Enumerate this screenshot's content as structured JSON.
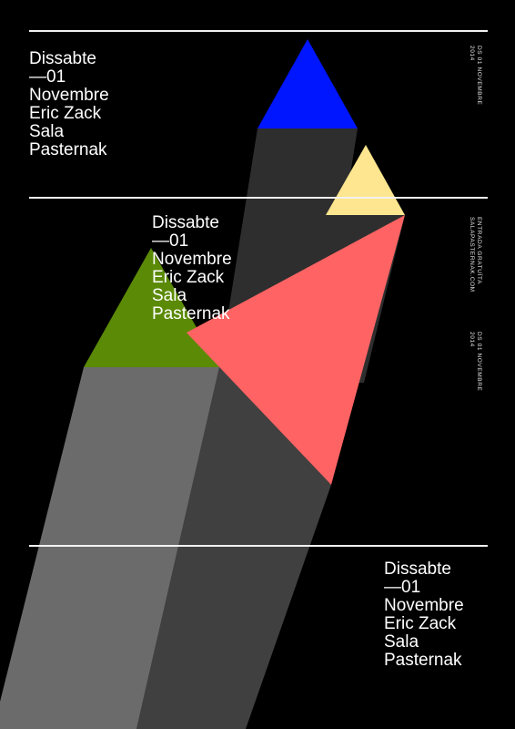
{
  "colors": {
    "background": "#000000",
    "blue_triangle": "#0016ff",
    "yellow_triangle": "#fde68f",
    "green_triangle": "#5b8a06",
    "red_triangle": "#ff6363",
    "shadow_dark": "#2e2e2e",
    "shadow_mid": "#404040",
    "shadow_light": "#6b6b6b",
    "rule_line": "#f2f2f2",
    "text": "#ffffff"
  },
  "event_block_top": {
    "line1": "Dissabte",
    "line2": "—01",
    "line3": "Novembre",
    "line4": "Eric Zack",
    "line5": "Sala",
    "line6": "Pasternak"
  },
  "event_block_middle": {
    "line1": "Dissabte",
    "line2": "—01",
    "line3": "Novembre",
    "line4": "Eric Zack",
    "line5": "Sala",
    "line6": "Pasternak"
  },
  "event_block_bottom": {
    "line1": "Dissabte",
    "line2": "—01",
    "line3": "Novembre",
    "line4": "Eric Zack",
    "line5": "Sala",
    "line6": "Pasternak"
  },
  "side_top": {
    "line1": "DS 01 NOVEMBRE",
    "line2": "2014"
  },
  "side_middle": {
    "line1": "ENTRADA GRATUÏTA",
    "line2": "SALAPASTERNAK.COM"
  },
  "side_lower": {
    "line1": "DS 01 NOVEMBRE",
    "line2": "2014"
  }
}
